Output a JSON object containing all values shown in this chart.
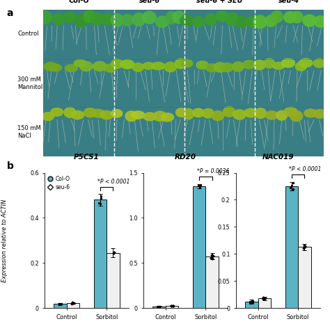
{
  "panel_b": {
    "genes": [
      "P5CS1",
      "RD20",
      "NAC019"
    ],
    "conditions": [
      "Control",
      "Sorbitol"
    ],
    "col0_control": [
      0.018,
      0.018,
      0.012
    ],
    "col0_sorbitol": [
      0.48,
      1.35,
      0.225
    ],
    "seu6_control": [
      0.022,
      0.025,
      0.018
    ],
    "seu6_sorbitol": [
      0.245,
      0.575,
      0.113
    ],
    "col0_control_err": [
      0.004,
      0.004,
      0.004
    ],
    "col0_sorbitol_err": [
      0.025,
      0.025,
      0.008
    ],
    "seu6_control_err": [
      0.004,
      0.004,
      0.003
    ],
    "seu6_sorbitol_err": [
      0.02,
      0.035,
      0.006
    ],
    "ylims": [
      0.6,
      1.5,
      0.25
    ],
    "yticks": [
      [
        0,
        0.2,
        0.4,
        0.6
      ],
      [
        0,
        0.5,
        1.0,
        1.5
      ],
      [
        0,
        0.05,
        0.1,
        0.15,
        0.2,
        0.25
      ]
    ],
    "pvalues": [
      "*P < 0.0001",
      "*P = 0.0036",
      "*P < 0.0001"
    ],
    "col0_color": "#5ab4c5",
    "seu6_color": "#f0f0f0",
    "bar_edge_color": "#111111",
    "ylabel": "Expression relative to ACTIN"
  },
  "teal_bg": "#3a7e85",
  "teal_dark": "#2e6870",
  "teal_light": "#4a9da8",
  "green_bright": "#4db040",
  "green_dark": "#2d7a20",
  "green_yellow": "#8ab830",
  "root_color": "#e8e8d8",
  "sep_line_color": "#ffffff"
}
